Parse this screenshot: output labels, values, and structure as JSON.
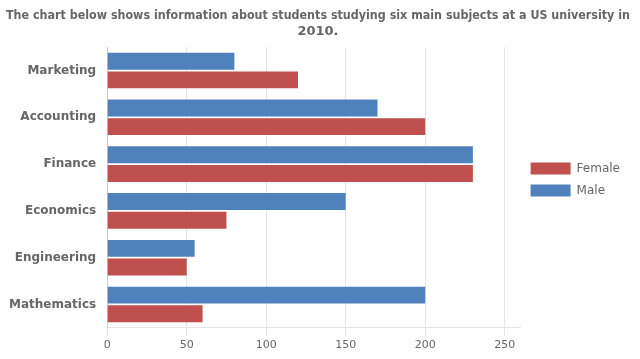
{
  "chart_data": {
    "type": "bar",
    "orientation": "horizontal",
    "title": "The chart below shows information about students studying six main subjects at a US university in\n2010.",
    "categories": [
      "Mathematics",
      "Engineering",
      "Economics",
      "Finance",
      "Accounting",
      "Marketing"
    ],
    "series": [
      {
        "name": "Female",
        "color": "#c0504d",
        "values": [
          60,
          50,
          75,
          230,
          200,
          120
        ]
      },
      {
        "name": "Male",
        "color": "#4f81bd",
        "values": [
          200,
          55,
          150,
          230,
          170,
          80
        ]
      }
    ],
    "xlim": [
      0,
      260
    ],
    "xticks": [
      0,
      50,
      100,
      150,
      200,
      250
    ],
    "grid": true,
    "legend": "right"
  }
}
